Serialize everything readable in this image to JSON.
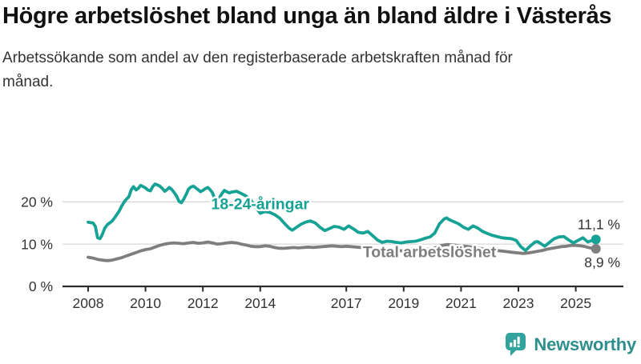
{
  "header": {
    "title": "Högre arbetslöshet bland unga än bland äldre i Västerås",
    "subtitle": "Arbetssökande som andel av den registerbaserade arbetskraften månad för månad."
  },
  "chart_data": {
    "type": "line",
    "title": "Högre arbetslöshet bland unga än bland äldre i Västerås",
    "subtitle": "Arbetssökande som andel av den registerbaserade arbetskraften månad för månad.",
    "grid": "horizontal",
    "legend_position": "inline-labels",
    "ylim": [
      0,
      26
    ],
    "x_range": [
      2008,
      2025.7
    ],
    "yticks": [
      {
        "value": 0,
        "label": "0 %"
      },
      {
        "value": 10,
        "label": "10 %"
      },
      {
        "value": 20,
        "label": "20 %"
      }
    ],
    "xticks": [
      {
        "value": 2008,
        "label": "2008"
      },
      {
        "value": 2010,
        "label": "2010"
      },
      {
        "value": 2012,
        "label": "2012"
      },
      {
        "value": 2014,
        "label": "2014"
      },
      {
        "value": 2017,
        "label": "2017"
      },
      {
        "value": 2019,
        "label": "2019"
      },
      {
        "value": 2021,
        "label": "2021"
      },
      {
        "value": 2023,
        "label": "2023"
      },
      {
        "value": 2025,
        "label": "2025"
      }
    ],
    "colors": {
      "grid": "#d8d8d8",
      "axis": "#2b2b2b",
      "text": "#333333",
      "background": "#ffffff"
    },
    "series": [
      {
        "name": "Total arbetslöshet",
        "color": "#7e7e7e",
        "end_label": "8,9 %",
        "end_label_side": "below",
        "label_anchor": {
          "x": 2019.9,
          "y": 8.2
        },
        "points": [
          [
            2008.0,
            6.9
          ],
          [
            2008.17,
            6.7
          ],
          [
            2008.33,
            6.4
          ],
          [
            2008.5,
            6.2
          ],
          [
            2008.67,
            6.1
          ],
          [
            2008.83,
            6.2
          ],
          [
            2009.0,
            6.5
          ],
          [
            2009.17,
            6.8
          ],
          [
            2009.33,
            7.2
          ],
          [
            2009.5,
            7.6
          ],
          [
            2009.67,
            8.0
          ],
          [
            2009.83,
            8.4
          ],
          [
            2010.0,
            8.7
          ],
          [
            2010.17,
            8.9
          ],
          [
            2010.33,
            9.3
          ],
          [
            2010.5,
            9.7
          ],
          [
            2010.67,
            10.0
          ],
          [
            2010.83,
            10.2
          ],
          [
            2011.0,
            10.3
          ],
          [
            2011.17,
            10.2
          ],
          [
            2011.33,
            10.1
          ],
          [
            2011.5,
            10.3
          ],
          [
            2011.67,
            10.4
          ],
          [
            2011.83,
            10.2
          ],
          [
            2012.0,
            10.3
          ],
          [
            2012.17,
            10.5
          ],
          [
            2012.33,
            10.3
          ],
          [
            2012.5,
            10.0
          ],
          [
            2012.67,
            10.1
          ],
          [
            2012.83,
            10.3
          ],
          [
            2013.0,
            10.4
          ],
          [
            2013.17,
            10.3
          ],
          [
            2013.33,
            10.0
          ],
          [
            2013.5,
            9.8
          ],
          [
            2013.67,
            9.5
          ],
          [
            2013.83,
            9.4
          ],
          [
            2014.0,
            9.4
          ],
          [
            2014.17,
            9.6
          ],
          [
            2014.33,
            9.5
          ],
          [
            2014.5,
            9.2
          ],
          [
            2014.67,
            9.0
          ],
          [
            2014.83,
            9.0
          ],
          [
            2015.0,
            9.1
          ],
          [
            2015.17,
            9.2
          ],
          [
            2015.33,
            9.1
          ],
          [
            2015.5,
            9.2
          ],
          [
            2015.67,
            9.3
          ],
          [
            2015.83,
            9.2
          ],
          [
            2016.0,
            9.3
          ],
          [
            2016.17,
            9.4
          ],
          [
            2016.33,
            9.5
          ],
          [
            2016.5,
            9.6
          ],
          [
            2016.67,
            9.5
          ],
          [
            2016.83,
            9.4
          ],
          [
            2017.0,
            9.5
          ],
          [
            2017.17,
            9.4
          ],
          [
            2017.33,
            9.3
          ],
          [
            2017.5,
            9.2
          ],
          [
            2017.67,
            9.1
          ],
          [
            2017.83,
            9.0
          ],
          [
            2018.0,
            8.8
          ],
          [
            2018.25,
            8.7
          ],
          [
            2018.5,
            8.6
          ],
          [
            2018.75,
            8.5
          ],
          [
            2019.0,
            8.4
          ],
          [
            2019.25,
            8.5
          ],
          [
            2019.5,
            8.5
          ],
          [
            2019.75,
            8.7
          ],
          [
            2020.0,
            8.9
          ],
          [
            2020.17,
            9.3
          ],
          [
            2020.33,
            9.7
          ],
          [
            2020.5,
            9.9
          ],
          [
            2020.67,
            9.8
          ],
          [
            2020.83,
            9.7
          ],
          [
            2021.0,
            9.6
          ],
          [
            2021.25,
            9.4
          ],
          [
            2021.5,
            9.2
          ],
          [
            2021.75,
            8.9
          ],
          [
            2022.0,
            8.6
          ],
          [
            2022.25,
            8.5
          ],
          [
            2022.5,
            8.3
          ],
          [
            2022.75,
            8.1
          ],
          [
            2023.0,
            7.9
          ],
          [
            2023.17,
            7.8
          ],
          [
            2023.33,
            7.9
          ],
          [
            2023.5,
            8.1
          ],
          [
            2023.67,
            8.3
          ],
          [
            2023.83,
            8.5
          ],
          [
            2024.0,
            8.8
          ],
          [
            2024.17,
            9.0
          ],
          [
            2024.33,
            9.2
          ],
          [
            2024.5,
            9.4
          ],
          [
            2024.67,
            9.5
          ],
          [
            2024.83,
            9.7
          ],
          [
            2025.0,
            9.7
          ],
          [
            2025.17,
            9.6
          ],
          [
            2025.33,
            9.4
          ],
          [
            2025.5,
            9.1
          ],
          [
            2025.7,
            8.9
          ]
        ]
      },
      {
        "name": "18-24-åringar",
        "color": "#17a296",
        "end_label": "11,1 %",
        "end_label_side": "above",
        "label_anchor": {
          "x": 2014.0,
          "y": 19.6
        },
        "points": [
          [
            2008.0,
            15.2
          ],
          [
            2008.08,
            15.1
          ],
          [
            2008.17,
            15.0
          ],
          [
            2008.25,
            14.2
          ],
          [
            2008.33,
            11.5
          ],
          [
            2008.42,
            11.3
          ],
          [
            2008.5,
            12.4
          ],
          [
            2008.58,
            13.8
          ],
          [
            2008.67,
            14.6
          ],
          [
            2008.75,
            15.0
          ],
          [
            2008.83,
            15.4
          ],
          [
            2008.92,
            16.2
          ],
          [
            2009.0,
            17.0
          ],
          [
            2009.08,
            17.8
          ],
          [
            2009.17,
            19.0
          ],
          [
            2009.25,
            19.9
          ],
          [
            2009.33,
            20.6
          ],
          [
            2009.42,
            21.2
          ],
          [
            2009.5,
            22.8
          ],
          [
            2009.58,
            23.6
          ],
          [
            2009.67,
            22.8
          ],
          [
            2009.75,
            23.2
          ],
          [
            2009.83,
            23.9
          ],
          [
            2009.92,
            23.6
          ],
          [
            2010.0,
            23.3
          ],
          [
            2010.08,
            22.8
          ],
          [
            2010.17,
            22.6
          ],
          [
            2010.25,
            23.6
          ],
          [
            2010.33,
            24.2
          ],
          [
            2010.42,
            24.0
          ],
          [
            2010.5,
            23.7
          ],
          [
            2010.58,
            23.2
          ],
          [
            2010.67,
            22.5
          ],
          [
            2010.75,
            22.9
          ],
          [
            2010.83,
            23.4
          ],
          [
            2010.92,
            22.9
          ],
          [
            2011.0,
            22.2
          ],
          [
            2011.08,
            21.4
          ],
          [
            2011.17,
            20.1
          ],
          [
            2011.25,
            19.8
          ],
          [
            2011.33,
            20.6
          ],
          [
            2011.42,
            21.8
          ],
          [
            2011.5,
            23.0
          ],
          [
            2011.58,
            23.5
          ],
          [
            2011.67,
            23.7
          ],
          [
            2011.75,
            23.3
          ],
          [
            2011.83,
            22.9
          ],
          [
            2011.92,
            22.4
          ],
          [
            2012.0,
            22.7
          ],
          [
            2012.08,
            23.1
          ],
          [
            2012.17,
            23.4
          ],
          [
            2012.25,
            22.9
          ],
          [
            2012.33,
            22.2
          ],
          [
            2012.42,
            20.6
          ],
          [
            2012.5,
            19.9
          ],
          [
            2012.58,
            21.0
          ],
          [
            2012.67,
            22.0
          ],
          [
            2012.75,
            22.7
          ],
          [
            2012.83,
            22.4
          ],
          [
            2012.92,
            22.1
          ],
          [
            2013.0,
            22.3
          ],
          [
            2013.17,
            22.5
          ],
          [
            2013.33,
            22.0
          ],
          [
            2013.5,
            21.4
          ],
          [
            2013.67,
            20.4
          ],
          [
            2013.83,
            18.8
          ],
          [
            2014.0,
            17.3
          ],
          [
            2014.17,
            17.7
          ],
          [
            2014.33,
            17.5
          ],
          [
            2014.5,
            17.0
          ],
          [
            2014.67,
            16.2
          ],
          [
            2014.83,
            15.0
          ],
          [
            2015.0,
            13.8
          ],
          [
            2015.12,
            13.3
          ],
          [
            2015.25,
            13.9
          ],
          [
            2015.42,
            14.7
          ],
          [
            2015.58,
            15.2
          ],
          [
            2015.75,
            15.5
          ],
          [
            2015.92,
            15.0
          ],
          [
            2016.08,
            14.0
          ],
          [
            2016.25,
            13.2
          ],
          [
            2016.42,
            13.7
          ],
          [
            2016.58,
            14.2
          ],
          [
            2016.75,
            14.0
          ],
          [
            2016.92,
            13.5
          ],
          [
            2017.08,
            14.3
          ],
          [
            2017.25,
            13.6
          ],
          [
            2017.42,
            12.8
          ],
          [
            2017.58,
            12.6
          ],
          [
            2017.75,
            13.0
          ],
          [
            2017.92,
            12.0
          ],
          [
            2018.08,
            11.0
          ],
          [
            2018.25,
            10.4
          ],
          [
            2018.42,
            10.7
          ],
          [
            2018.58,
            10.6
          ],
          [
            2018.75,
            10.4
          ],
          [
            2018.92,
            10.3
          ],
          [
            2019.08,
            10.5
          ],
          [
            2019.25,
            10.6
          ],
          [
            2019.42,
            10.7
          ],
          [
            2019.58,
            11.0
          ],
          [
            2019.75,
            11.4
          ],
          [
            2019.92,
            11.7
          ],
          [
            2020.08,
            12.6
          ],
          [
            2020.25,
            14.8
          ],
          [
            2020.42,
            16.0
          ],
          [
            2020.5,
            16.2
          ],
          [
            2020.58,
            15.8
          ],
          [
            2020.75,
            15.3
          ],
          [
            2020.92,
            14.8
          ],
          [
            2021.08,
            14.0
          ],
          [
            2021.25,
            13.5
          ],
          [
            2021.42,
            14.3
          ],
          [
            2021.58,
            13.8
          ],
          [
            2021.75,
            13.0
          ],
          [
            2021.92,
            12.5
          ],
          [
            2022.08,
            12.1
          ],
          [
            2022.25,
            11.8
          ],
          [
            2022.42,
            11.5
          ],
          [
            2022.58,
            11.4
          ],
          [
            2022.75,
            11.3
          ],
          [
            2022.92,
            10.9
          ],
          [
            2023.08,
            9.4
          ],
          [
            2023.25,
            8.5
          ],
          [
            2023.42,
            9.6
          ],
          [
            2023.58,
            10.5
          ],
          [
            2023.67,
            10.6
          ],
          [
            2023.83,
            9.9
          ],
          [
            2023.92,
            9.5
          ],
          [
            2024.08,
            10.4
          ],
          [
            2024.25,
            11.3
          ],
          [
            2024.42,
            11.7
          ],
          [
            2024.58,
            11.8
          ],
          [
            2024.75,
            11.0
          ],
          [
            2024.92,
            10.3
          ],
          [
            2025.08,
            10.9
          ],
          [
            2025.25,
            11.5
          ],
          [
            2025.42,
            10.5
          ],
          [
            2025.58,
            10.9
          ],
          [
            2025.7,
            11.1
          ]
        ]
      }
    ]
  },
  "footer": {
    "brand": "Newsworthy",
    "logo_color": "#33a49d",
    "brand_text_color": "#2e8f8c"
  }
}
